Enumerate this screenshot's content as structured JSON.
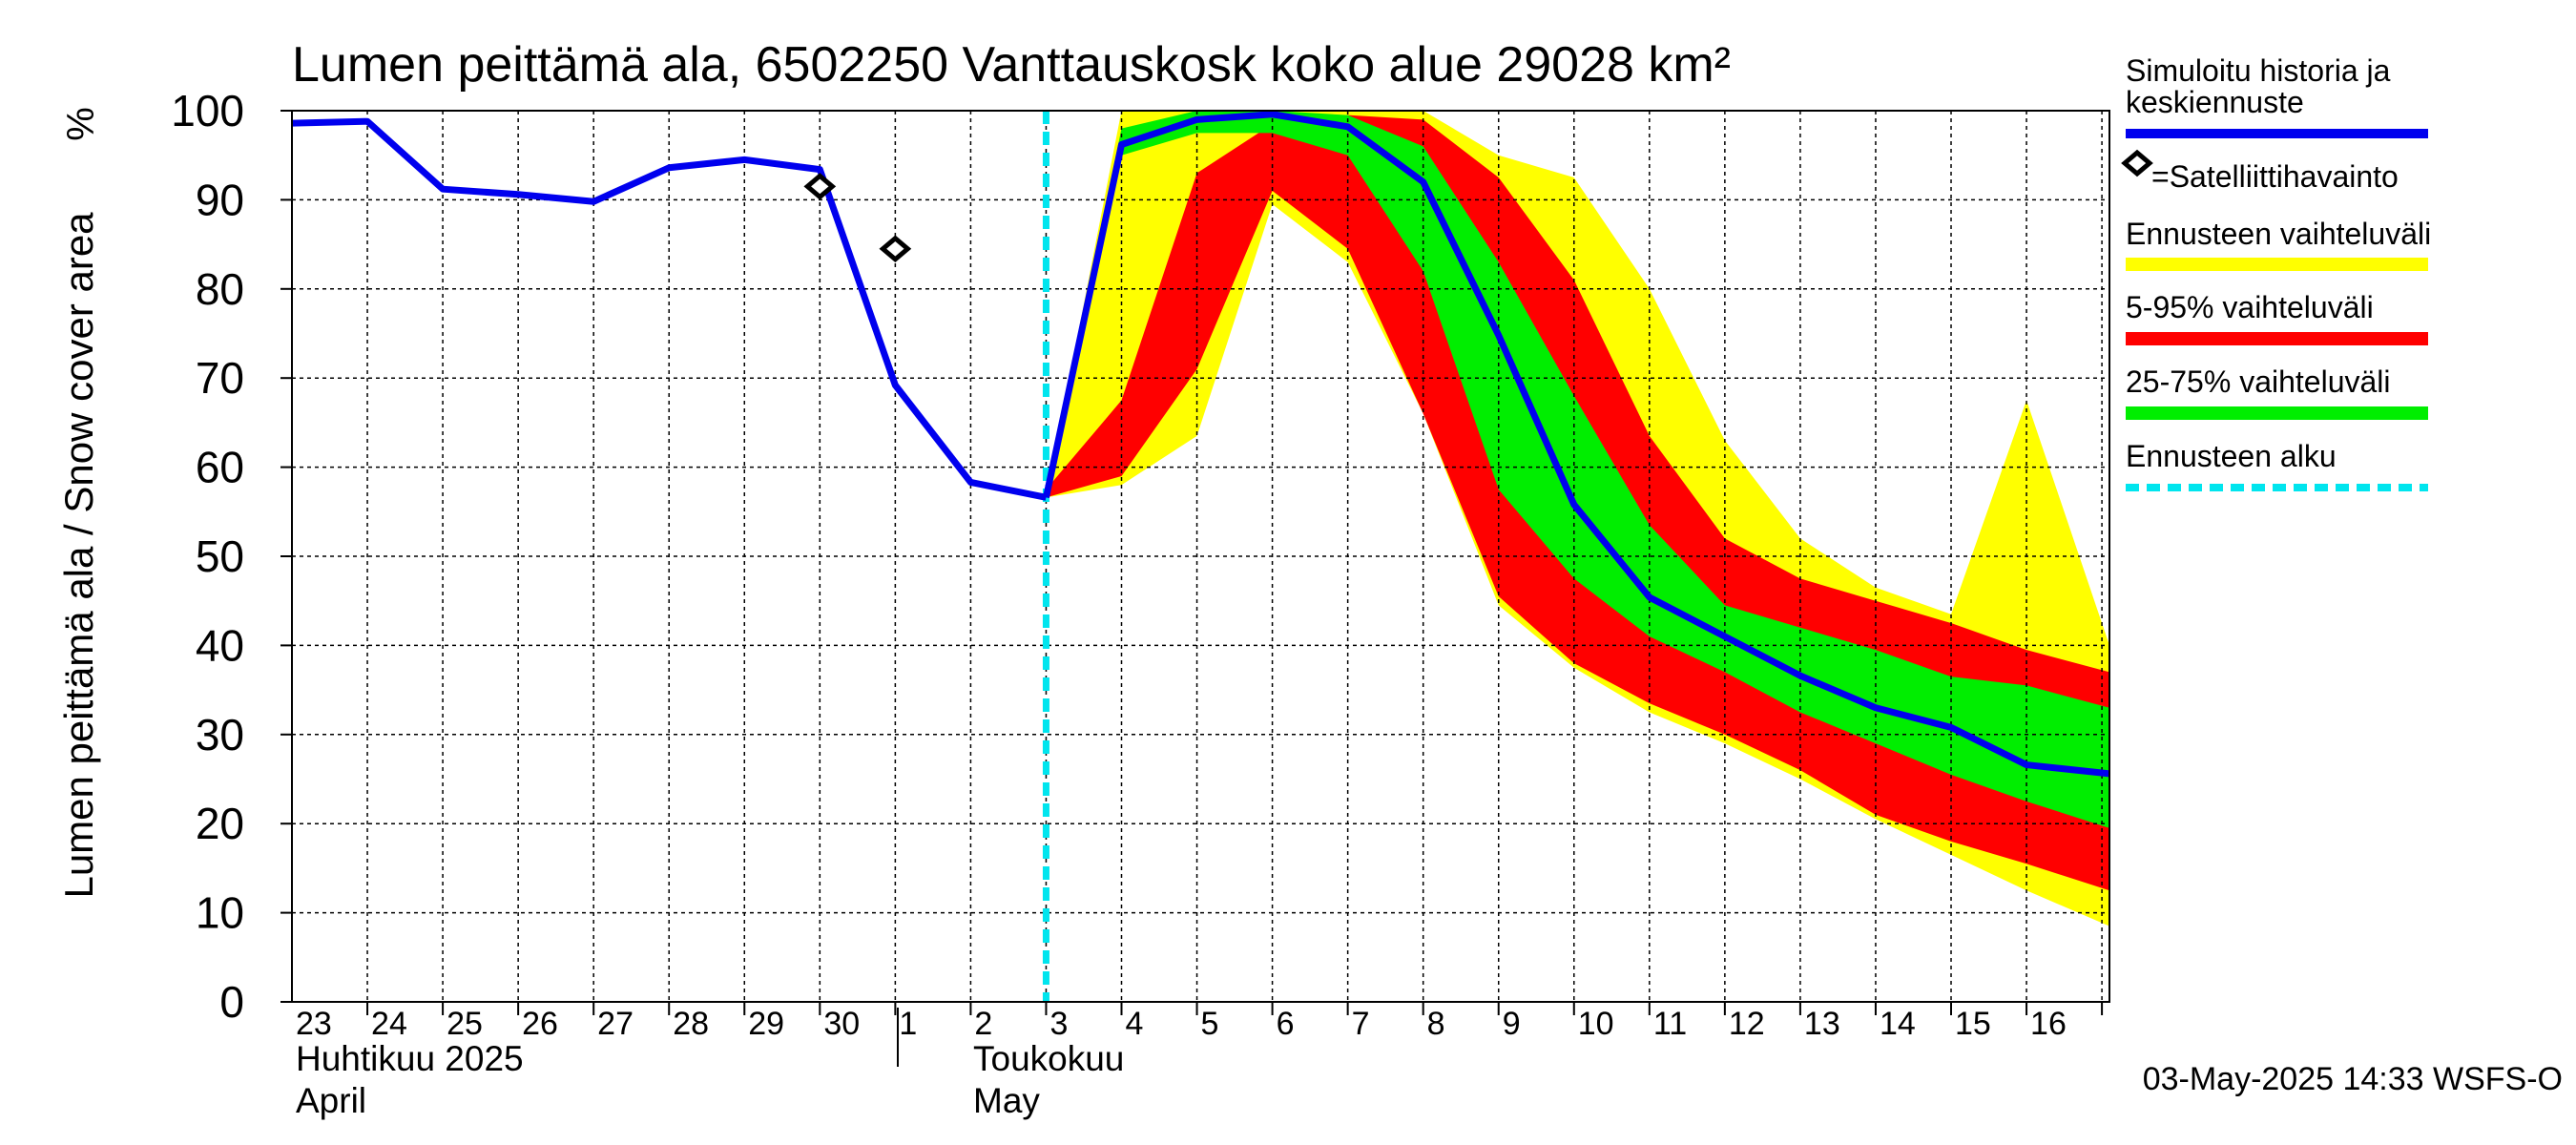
{
  "chart_data": {
    "type": "area",
    "title": "Lumen peittämä ala, 6502250 Vanttauskosk koko alue 29028 km²",
    "ylabel": "Lumen peittämä ala / Snow cover area",
    "yunit": "%",
    "ylim": [
      0,
      100
    ],
    "yticks": [
      0,
      10,
      20,
      30,
      40,
      50,
      60,
      70,
      80,
      90,
      100
    ],
    "xlim": [
      -0.5,
      23.6
    ],
    "grid": true,
    "legend_position": "right",
    "x_tick_labels": [
      "23",
      "24",
      "25",
      "26",
      "27",
      "28",
      "29",
      "30",
      "1",
      "2",
      "3",
      "4",
      "5",
      "6",
      "7",
      "8",
      "9",
      "10",
      "11",
      "12",
      "13",
      "14",
      "15",
      "16"
    ],
    "month_labels": [
      {
        "fi": "Huhtikuu  2025",
        "en": "April",
        "day_index": 0
      },
      {
        "fi": "Toukokuu",
        "en": "May",
        "day_index": 9
      }
    ],
    "forecast_start_x": 9.5,
    "history": {
      "name": "Simuloitu historia ja keskiennuste",
      "x": [
        -0.5,
        0.5,
        1.5,
        2.5,
        3.5,
        4.5,
        5.5,
        6.5,
        7.5,
        8.5,
        9.5
      ],
      "y": [
        98.6,
        98.8,
        91.2,
        90.6,
        89.8,
        93.6,
        94.5,
        93.4,
        69.2,
        58.3,
        56.6
      ]
    },
    "median_forecast": {
      "x": [
        9.5,
        10.5,
        11.5,
        12.5,
        13.5,
        14.5,
        15.5,
        16.5,
        17.5,
        18.5,
        19.5,
        20.5,
        21.5,
        22.5,
        23.6
      ],
      "y": [
        56.6,
        96.2,
        99.0,
        99.6,
        98.2,
        92.0,
        74.8,
        55.8,
        45.4,
        41.0,
        36.6,
        33.0,
        30.8,
        26.6,
        25.6
      ]
    },
    "bands": [
      {
        "name": "Ennusteen vaihteluväli",
        "color": "#ffff00",
        "x": [
          9.5,
          10.5,
          11.5,
          12.5,
          13.5,
          14.5,
          15.5,
          16.5,
          17.5,
          18.5,
          19.5,
          20.5,
          21.5,
          22.5,
          23.6
        ],
        "upper": [
          56.6,
          100,
          100,
          100,
          100,
          100,
          95.0,
          92.5,
          80.0,
          63.0,
          52.0,
          46.5,
          43.5,
          67.5,
          40.0
        ],
        "lower": [
          56.6,
          58.0,
          63.5,
          89.5,
          83.0,
          66.0,
          44.5,
          37.5,
          32.5,
          29.0,
          25.0,
          20.5,
          16.5,
          12.5,
          8.5
        ]
      },
      {
        "name": "5-95% vaihteluväli",
        "color": "#ff0000",
        "x": [
          9.5,
          10.5,
          11.5,
          12.5,
          13.5,
          14.5,
          15.5,
          16.5,
          17.5,
          18.5,
          19.5,
          20.5,
          21.5,
          22.5,
          23.6
        ],
        "upper": [
          57.5,
          67.5,
          93.0,
          98.5,
          99.5,
          99.0,
          92.5,
          81.0,
          63.5,
          52.0,
          47.5,
          45.0,
          42.5,
          39.5,
          37.0
        ],
        "lower": [
          56.6,
          59.0,
          71.0,
          91.0,
          84.5,
          66.0,
          45.5,
          38.0,
          33.5,
          30.0,
          26.0,
          21.0,
          18.0,
          15.5,
          12.5
        ]
      },
      {
        "name": "25-75% vaihteluväli",
        "color": "#00ee00",
        "x": [
          9.5,
          10.5,
          11.5,
          12.5,
          13.5,
          14.5,
          15.5,
          16.5,
          17.5,
          18.5,
          19.5,
          20.5,
          21.5,
          22.5,
          23.6
        ],
        "upper": [
          56.6,
          98.0,
          100,
          100,
          99.5,
          96.0,
          83.0,
          68.0,
          53.5,
          44.5,
          42.0,
          39.5,
          36.5,
          35.5,
          33.0
        ],
        "lower": [
          56.6,
          95.0,
          97.5,
          97.5,
          95.0,
          82.0,
          57.5,
          47.5,
          41.0,
          37.0,
          32.5,
          29.0,
          25.5,
          22.5,
          19.5
        ]
      }
    ],
    "satellite": {
      "name": "=Satelliittihavainto",
      "x": [
        6.5,
        7.5
      ],
      "y": [
        91.5,
        84.5
      ]
    },
    "forecast_start_label": "Ennusteen alku"
  },
  "footer": {
    "timestamp": "03-May-2025 14:33 WSFS-O"
  },
  "legend": {
    "history_line1": "Simuloitu historia ja",
    "history_line2": "keskiennuste",
    "satellite": "=Satelliittihavainto",
    "range_full": "Ennusteen vaihteluväli",
    "range_5_95": "5-95% vaihteluväli",
    "range_25_75": "25-75% vaihteluväli",
    "forecast_start": "Ennusteen alku"
  },
  "colors": {
    "history": "#0000ee",
    "forecast_start": "#00e5ee",
    "yellow": "#ffff00",
    "red": "#ff0000",
    "green": "#00ee00"
  }
}
